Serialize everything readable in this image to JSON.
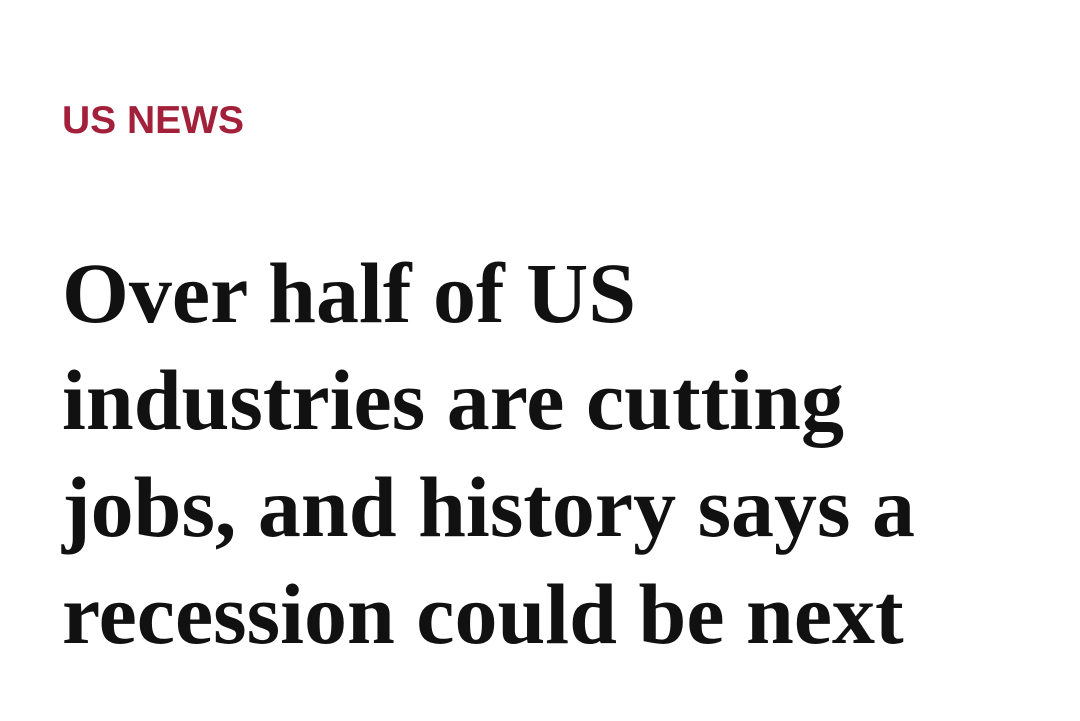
{
  "section": "US NEWS",
  "headline_lines": [
    "Over half of US",
    "industries are cutting",
    "jobs, and history says a",
    "recession could be next"
  ]
}
